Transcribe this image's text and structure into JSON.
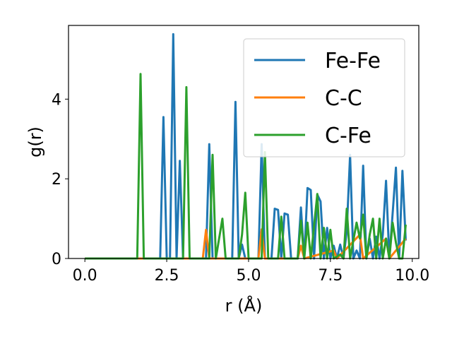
{
  "chart_data": {
    "type": "line",
    "xlabel": "r (Å)",
    "ylabel": "g(r)",
    "xlim": [
      -0.5,
      10.2
    ],
    "ylim": [
      0,
      5.85
    ],
    "xticks": [
      0.0,
      2.5,
      5.0,
      7.5,
      10.0
    ],
    "xtick_labels": [
      "0.0",
      "2.5",
      "5.0",
      "7.5",
      "10.0"
    ],
    "yticks": [
      0,
      2,
      4
    ],
    "ytick_labels": [
      "0",
      "2",
      "4"
    ],
    "grid": false,
    "legend": "upper right",
    "series": [
      {
        "name": "Fe-Fe",
        "color": "#1f77b4",
        "points": [
          [
            0,
            0
          ],
          [
            2.2,
            0
          ],
          [
            2.3,
            0
          ],
          [
            2.4,
            3.55
          ],
          [
            2.5,
            0
          ],
          [
            2.6,
            0
          ],
          [
            2.7,
            5.63
          ],
          [
            2.8,
            0
          ],
          [
            2.9,
            2.45
          ],
          [
            3.0,
            0
          ],
          [
            3.7,
            0
          ],
          [
            3.8,
            2.87
          ],
          [
            3.9,
            0
          ],
          [
            4.5,
            0
          ],
          [
            4.6,
            3.93
          ],
          [
            4.7,
            0
          ],
          [
            4.8,
            0.35
          ],
          [
            4.9,
            0
          ],
          [
            5.3,
            0
          ],
          [
            5.4,
            2.87
          ],
          [
            5.5,
            0
          ],
          [
            5.7,
            0
          ],
          [
            5.8,
            1.25
          ],
          [
            5.9,
            1.22
          ],
          [
            6.0,
            0
          ],
          [
            6.1,
            1.13
          ],
          [
            6.2,
            1.1
          ],
          [
            6.3,
            0
          ],
          [
            6.5,
            0
          ],
          [
            6.6,
            1.28
          ],
          [
            6.7,
            0
          ],
          [
            6.8,
            1.77
          ],
          [
            6.9,
            1.72
          ],
          [
            7.0,
            0
          ],
          [
            7.1,
            1.6
          ],
          [
            7.2,
            1.43
          ],
          [
            7.3,
            0
          ],
          [
            7.4,
            0.77
          ],
          [
            7.5,
            0
          ],
          [
            7.6,
            0.32
          ],
          [
            7.7,
            0
          ],
          [
            7.8,
            0.35
          ],
          [
            7.9,
            0
          ],
          [
            8.0,
            0.7
          ],
          [
            8.1,
            2.6
          ],
          [
            8.2,
            0
          ],
          [
            8.3,
            0.2
          ],
          [
            8.4,
            0
          ],
          [
            8.5,
            2.33
          ],
          [
            8.6,
            0
          ],
          [
            8.7,
            0.5
          ],
          [
            8.8,
            0
          ],
          [
            8.9,
            0.55
          ],
          [
            9.0,
            0
          ],
          [
            9.1,
            0.6
          ],
          [
            9.2,
            1.95
          ],
          [
            9.3,
            0
          ],
          [
            9.4,
            1.12
          ],
          [
            9.5,
            2.28
          ],
          [
            9.6,
            0
          ],
          [
            9.7,
            2.2
          ],
          [
            9.8,
            0.45
          ]
        ]
      },
      {
        "name": "C-C",
        "color": "#ff7f0e",
        "points": [
          [
            0,
            0
          ],
          [
            3.6,
            0
          ],
          [
            3.7,
            0.72
          ],
          [
            3.8,
            0
          ],
          [
            5.3,
            0
          ],
          [
            5.4,
            0.73
          ],
          [
            5.5,
            0
          ],
          [
            6.5,
            0
          ],
          [
            6.6,
            0.32
          ],
          [
            6.7,
            0
          ],
          [
            7.6,
            0.2
          ],
          [
            7.7,
            0
          ],
          [
            8.4,
            0.6
          ],
          [
            8.5,
            0
          ],
          [
            9.2,
            0.5
          ],
          [
            9.3,
            0
          ],
          [
            9.8,
            0.5
          ]
        ]
      },
      {
        "name": "C-Fe",
        "color": "#2ca02c",
        "points": [
          [
            0,
            0
          ],
          [
            1.6,
            0
          ],
          [
            1.7,
            4.63
          ],
          [
            1.8,
            0
          ],
          [
            3.0,
            0
          ],
          [
            3.1,
            4.3
          ],
          [
            3.2,
            0
          ],
          [
            3.8,
            0
          ],
          [
            3.9,
            2.6
          ],
          [
            4.0,
            0
          ],
          [
            4.2,
            1.0
          ],
          [
            4.3,
            0
          ],
          [
            4.7,
            0
          ],
          [
            4.8,
            0.6
          ],
          [
            4.9,
            1.65
          ],
          [
            5.0,
            0
          ],
          [
            5.4,
            0
          ],
          [
            5.5,
            2.67
          ],
          [
            5.6,
            0
          ],
          [
            5.9,
            0
          ],
          [
            6.0,
            1.05
          ],
          [
            6.1,
            0
          ],
          [
            6.5,
            0
          ],
          [
            6.6,
            0.95
          ],
          [
            6.7,
            0
          ],
          [
            6.8,
            0.9
          ],
          [
            6.9,
            0
          ],
          [
            7.1,
            1.62
          ],
          [
            7.2,
            0
          ],
          [
            7.3,
            0.77
          ],
          [
            7.4,
            0
          ],
          [
            7.5,
            0.72
          ],
          [
            7.6,
            0
          ],
          [
            7.8,
            0.1
          ],
          [
            7.9,
            0
          ],
          [
            8.0,
            1.25
          ],
          [
            8.1,
            0
          ],
          [
            8.3,
            0.9
          ],
          [
            8.4,
            0.5
          ],
          [
            8.5,
            1.1
          ],
          [
            8.6,
            0
          ],
          [
            8.7,
            0.6
          ],
          [
            8.8,
            1.0
          ],
          [
            8.9,
            0
          ],
          [
            9.0,
            1.0
          ],
          [
            9.1,
            0
          ],
          [
            9.2,
            0.5
          ],
          [
            9.3,
            0
          ],
          [
            9.4,
            0.9
          ],
          [
            9.5,
            0.4
          ],
          [
            9.6,
            0
          ],
          [
            9.7,
            0
          ],
          [
            9.8,
            0.85
          ]
        ]
      }
    ]
  }
}
